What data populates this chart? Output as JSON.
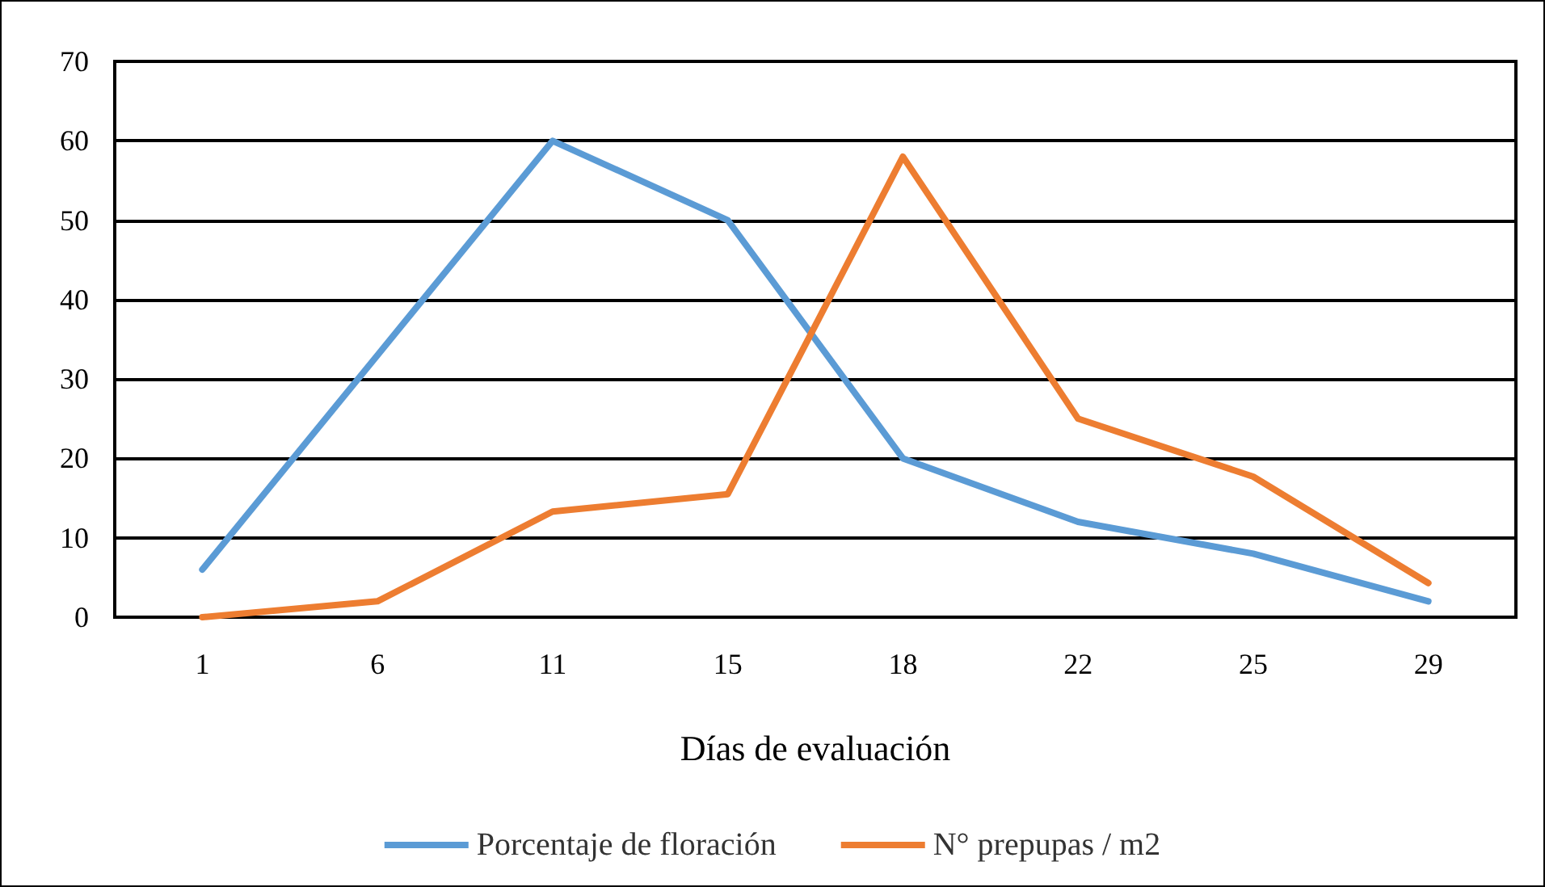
{
  "chart_data": {
    "type": "line",
    "xlabel": "Días de evaluación",
    "categories": [
      "1",
      "6",
      "11",
      "15",
      "18",
      "22",
      "25",
      "29"
    ],
    "series": [
      {
        "name": "Porcentaje de floración",
        "color": "#5b9bd5",
        "values": [
          6,
          33,
          60,
          50,
          20,
          12,
          8,
          2
        ]
      },
      {
        "name": "N° prepupas / m2",
        "color": "#ed7d31",
        "values": [
          0,
          2,
          13.3,
          15.5,
          58,
          25,
          17.7,
          4.3
        ]
      }
    ],
    "ylim": [
      0,
      70
    ],
    "yticks": [
      0,
      10,
      20,
      30,
      40,
      50,
      60,
      70
    ],
    "grid": "y",
    "legend": "bottom",
    "marker": "none",
    "line_style": "solid"
  }
}
